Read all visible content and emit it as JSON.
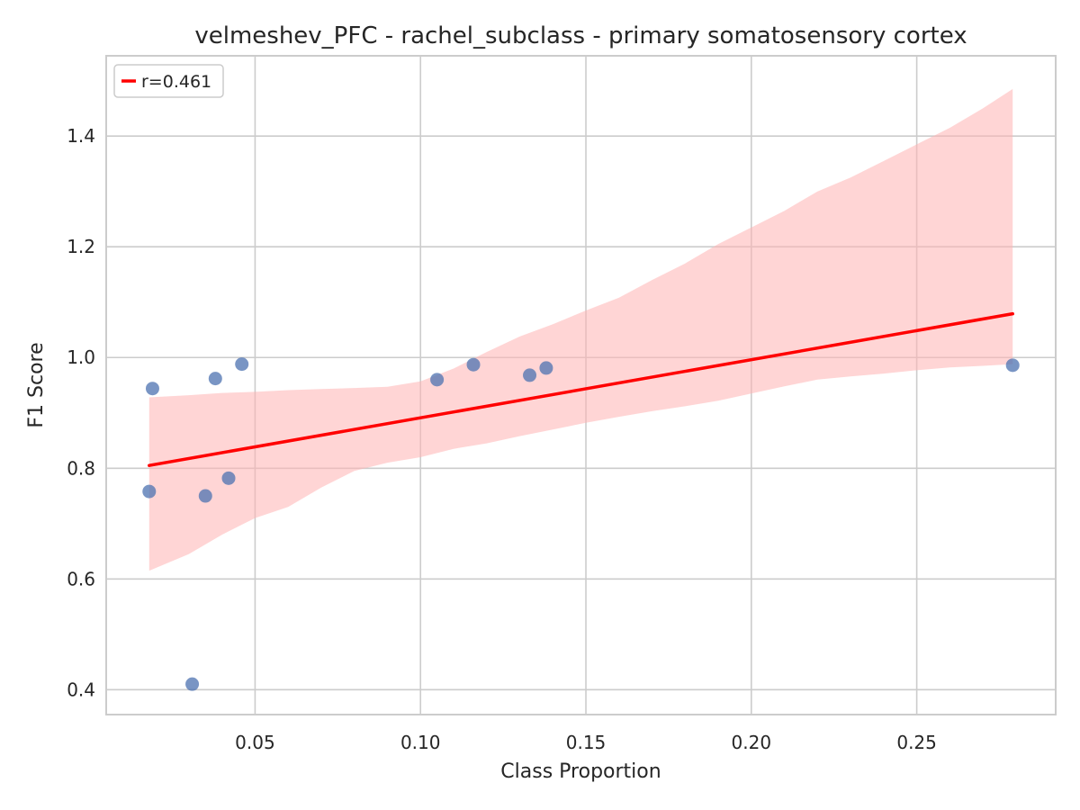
{
  "chart_data": {
    "type": "scatter",
    "title": "velmeshev_PFC - rachel_subclass - primary somatosensory cortex",
    "xlabel": "Class Proportion",
    "ylabel": "F1 Score",
    "xlim": [
      0.005,
      0.292
    ],
    "ylim": [
      0.355,
      1.545
    ],
    "xticks": [
      0.05,
      0.1,
      0.15,
      0.2,
      0.25
    ],
    "xtick_labels": [
      "0.05",
      "0.10",
      "0.15",
      "0.20",
      "0.25"
    ],
    "yticks": [
      0.4,
      0.6,
      0.8,
      1.0,
      1.2,
      1.4
    ],
    "ytick_labels": [
      "0.4",
      "0.6",
      "0.8",
      "1.0",
      "1.2",
      "1.4"
    ],
    "grid": true,
    "legend_position": "top-left",
    "series": [
      {
        "kind": "scatter",
        "color": "#4c72b0",
        "points": [
          {
            "x": 0.018,
            "y": 0.758
          },
          {
            "x": 0.019,
            "y": 0.944
          },
          {
            "x": 0.031,
            "y": 0.41
          },
          {
            "x": 0.035,
            "y": 0.75
          },
          {
            "x": 0.038,
            "y": 0.962
          },
          {
            "x": 0.042,
            "y": 0.782
          },
          {
            "x": 0.046,
            "y": 0.988
          },
          {
            "x": 0.105,
            "y": 0.96
          },
          {
            "x": 0.116,
            "y": 0.987
          },
          {
            "x": 0.133,
            "y": 0.968
          },
          {
            "x": 0.138,
            "y": 0.981
          },
          {
            "x": 0.279,
            "y": 0.986
          }
        ]
      },
      {
        "kind": "regression",
        "name": "r=0.461",
        "color": "#ff0000",
        "line": [
          {
            "x": 0.018,
            "y": 0.805
          },
          {
            "x": 0.279,
            "y": 1.079
          }
        ],
        "ci_band": {
          "color": "#ffb3b3",
          "x": [
            0.018,
            0.03,
            0.04,
            0.05,
            0.06,
            0.07,
            0.08,
            0.09,
            0.1,
            0.11,
            0.12,
            0.13,
            0.14,
            0.15,
            0.16,
            0.17,
            0.18,
            0.19,
            0.2,
            0.21,
            0.22,
            0.23,
            0.24,
            0.25,
            0.26,
            0.27,
            0.279
          ],
          "upper": [
            0.928,
            0.932,
            0.936,
            0.938,
            0.941,
            0.943,
            0.945,
            0.947,
            0.957,
            0.98,
            1.01,
            1.038,
            1.06,
            1.085,
            1.108,
            1.14,
            1.17,
            1.205,
            1.235,
            1.265,
            1.3,
            1.325,
            1.355,
            1.385,
            1.415,
            1.45,
            1.485
          ],
          "lower": [
            0.615,
            0.645,
            0.68,
            0.71,
            0.73,
            0.765,
            0.795,
            0.81,
            0.82,
            0.835,
            0.845,
            0.858,
            0.87,
            0.882,
            0.893,
            0.903,
            0.912,
            0.922,
            0.935,
            0.948,
            0.96,
            0.966,
            0.971,
            0.977,
            0.982,
            0.985,
            0.988
          ]
        }
      }
    ]
  }
}
